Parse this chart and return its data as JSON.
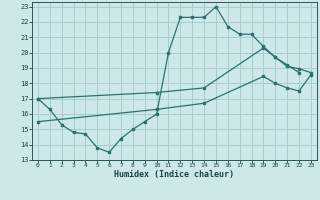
{
  "xlabel": "Humidex (Indice chaleur)",
  "bg_color": "#cde8e8",
  "grid_color": "#aacccc",
  "line_color": "#2d7070",
  "xlim": [
    -0.5,
    23.5
  ],
  "ylim": [
    13,
    23.3
  ],
  "xticks": [
    0,
    1,
    2,
    3,
    4,
    5,
    6,
    7,
    8,
    9,
    10,
    11,
    12,
    13,
    14,
    15,
    16,
    17,
    18,
    19,
    20,
    21,
    22,
    23
  ],
  "yticks": [
    13,
    14,
    15,
    16,
    17,
    18,
    19,
    20,
    21,
    22,
    23
  ],
  "series1_x": [
    0,
    1,
    2,
    3,
    4,
    5,
    6,
    7,
    8,
    9,
    10,
    11,
    12,
    13,
    14,
    15,
    16,
    17,
    18,
    19,
    20,
    21,
    22
  ],
  "series1_y": [
    17.0,
    16.3,
    15.3,
    14.8,
    14.7,
    13.8,
    13.5,
    14.4,
    15.0,
    15.5,
    16.0,
    20.0,
    22.3,
    22.3,
    22.3,
    23.0,
    21.7,
    21.2,
    21.2,
    20.4,
    19.7,
    19.2,
    18.7
  ],
  "series2_x": [
    0,
    10,
    14,
    19,
    20,
    21,
    22,
    23
  ],
  "series2_y": [
    17.0,
    17.4,
    17.7,
    20.3,
    19.7,
    19.1,
    18.95,
    18.7
  ],
  "series3_x": [
    0,
    10,
    14,
    19,
    20,
    21,
    22,
    23
  ],
  "series3_y": [
    15.5,
    16.3,
    16.7,
    18.45,
    18.0,
    17.7,
    17.5,
    18.55
  ]
}
